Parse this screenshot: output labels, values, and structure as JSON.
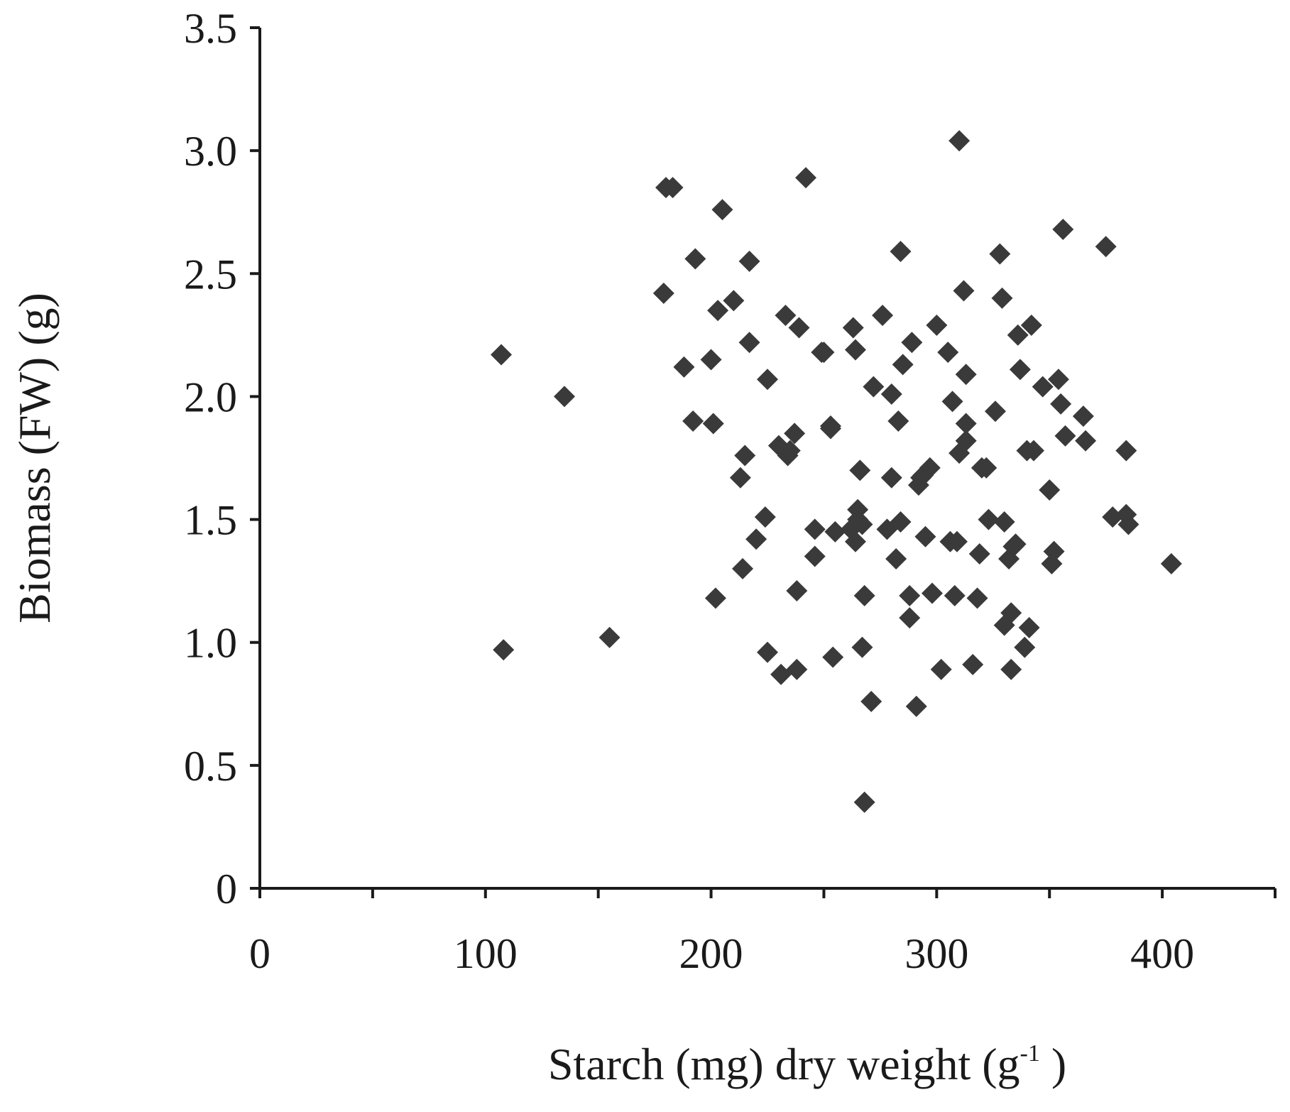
{
  "chart_data": {
    "type": "scatter",
    "xlabel": {
      "main": "Starch (mg) dry weight (g",
      "sup": "-1",
      "tail": " )"
    },
    "ylabel": "Biomass (FW) (g)",
    "xlim": [
      0,
      450
    ],
    "ylim": [
      0,
      3.5
    ],
    "x_ticks": [
      0,
      100,
      200,
      300,
      400
    ],
    "x_tick_labels": [
      "0",
      "100",
      "200",
      "300",
      "400"
    ],
    "x_minor_ticks": [
      50,
      150,
      250,
      350,
      450
    ],
    "y_ticks": [
      0,
      0.5,
      1.0,
      1.5,
      2.0,
      2.5,
      3.0,
      3.5
    ],
    "y_tick_labels": [
      "0",
      "0.5",
      "1.0",
      "1.5",
      "2.0",
      "2.5",
      "3.0",
      "3.5"
    ],
    "grid": false,
    "legend": "none",
    "marker": "diamond",
    "marker_color": "#3a3a3a",
    "points": [
      [
        107,
        2.17
      ],
      [
        108,
        0.97
      ],
      [
        135,
        2.0
      ],
      [
        155,
        1.02
      ],
      [
        179,
        2.42
      ],
      [
        180,
        2.85
      ],
      [
        183,
        2.85
      ],
      [
        188,
        2.12
      ],
      [
        192,
        1.9
      ],
      [
        193,
        2.56
      ],
      [
        200,
        2.15
      ],
      [
        201,
        1.89
      ],
      [
        202,
        1.18
      ],
      [
        203,
        2.35
      ],
      [
        205,
        2.76
      ],
      [
        210,
        2.39
      ],
      [
        213,
        1.67
      ],
      [
        214,
        1.3
      ],
      [
        215,
        1.76
      ],
      [
        217,
        2.22
      ],
      [
        217,
        2.55
      ],
      [
        220,
        1.42
      ],
      [
        224,
        1.51
      ],
      [
        225,
        2.07
      ],
      [
        225,
        0.96
      ],
      [
        230,
        1.8
      ],
      [
        231,
        0.87
      ],
      [
        233,
        2.33
      ],
      [
        234,
        1.76
      ],
      [
        235,
        1.78
      ],
      [
        237,
        1.85
      ],
      [
        238,
        0.89
      ],
      [
        238,
        1.21
      ],
      [
        239,
        2.28
      ],
      [
        242,
        2.89
      ],
      [
        246,
        1.35
      ],
      [
        246,
        1.46
      ],
      [
        249,
        2.18
      ],
      [
        250,
        2.18
      ],
      [
        253,
        1.87
      ],
      [
        253,
        1.88
      ],
      [
        254,
        0.94
      ],
      [
        255,
        1.45
      ],
      [
        262,
        1.46
      ],
      [
        263,
        2.28
      ],
      [
        264,
        2.19
      ],
      [
        264,
        1.41
      ],
      [
        265,
        1.54
      ],
      [
        265,
        1.5
      ],
      [
        266,
        1.7
      ],
      [
        267,
        1.48
      ],
      [
        267,
        0.98
      ],
      [
        268,
        0.35
      ],
      [
        268,
        1.19
      ],
      [
        271,
        0.76
      ],
      [
        272,
        2.04
      ],
      [
        276,
        2.33
      ],
      [
        278,
        1.46
      ],
      [
        280,
        2.01
      ],
      [
        280,
        1.67
      ],
      [
        282,
        1.34
      ],
      [
        283,
        1.9
      ],
      [
        284,
        1.49
      ],
      [
        284,
        2.59
      ],
      [
        285,
        2.13
      ],
      [
        288,
        1.1
      ],
      [
        288,
        1.19
      ],
      [
        289,
        2.22
      ],
      [
        291,
        0.74
      ],
      [
        292,
        1.64
      ],
      [
        293,
        1.67
      ],
      [
        294,
        1.68
      ],
      [
        295,
        1.43
      ],
      [
        297,
        1.71
      ],
      [
        298,
        1.2
      ],
      [
        300,
        2.29
      ],
      [
        302,
        0.89
      ],
      [
        305,
        2.18
      ],
      [
        306,
        1.41
      ],
      [
        307,
        1.98
      ],
      [
        308,
        1.19
      ],
      [
        309,
        1.41
      ],
      [
        310,
        3.04
      ],
      [
        310,
        1.77
      ],
      [
        312,
        2.43
      ],
      [
        313,
        1.89
      ],
      [
        313,
        1.82
      ],
      [
        313,
        2.09
      ],
      [
        316,
        0.91
      ],
      [
        318,
        1.18
      ],
      [
        319,
        1.36
      ],
      [
        320,
        1.71
      ],
      [
        322,
        1.71
      ],
      [
        323,
        1.5
      ],
      [
        326,
        1.94
      ],
      [
        328,
        2.58
      ],
      [
        329,
        2.4
      ],
      [
        330,
        1.49
      ],
      [
        330,
        1.07
      ],
      [
        332,
        1.34
      ],
      [
        333,
        1.12
      ],
      [
        333,
        0.89
      ],
      [
        334,
        1.39
      ],
      [
        335,
        1.4
      ],
      [
        336,
        2.25
      ],
      [
        337,
        2.11
      ],
      [
        339,
        0.98
      ],
      [
        340,
        1.78
      ],
      [
        341,
        1.06
      ],
      [
        342,
        2.29
      ],
      [
        343,
        1.78
      ],
      [
        347,
        2.04
      ],
      [
        350,
        1.62
      ],
      [
        351,
        1.32
      ],
      [
        352,
        1.37
      ],
      [
        354,
        2.07
      ],
      [
        355,
        1.97
      ],
      [
        356,
        2.68
      ],
      [
        357,
        1.84
      ],
      [
        365,
        1.92
      ],
      [
        366,
        1.82
      ],
      [
        375,
        2.61
      ],
      [
        378,
        1.51
      ],
      [
        384,
        1.78
      ],
      [
        384,
        1.52
      ],
      [
        385,
        1.48
      ],
      [
        404,
        1.32
      ]
    ]
  }
}
